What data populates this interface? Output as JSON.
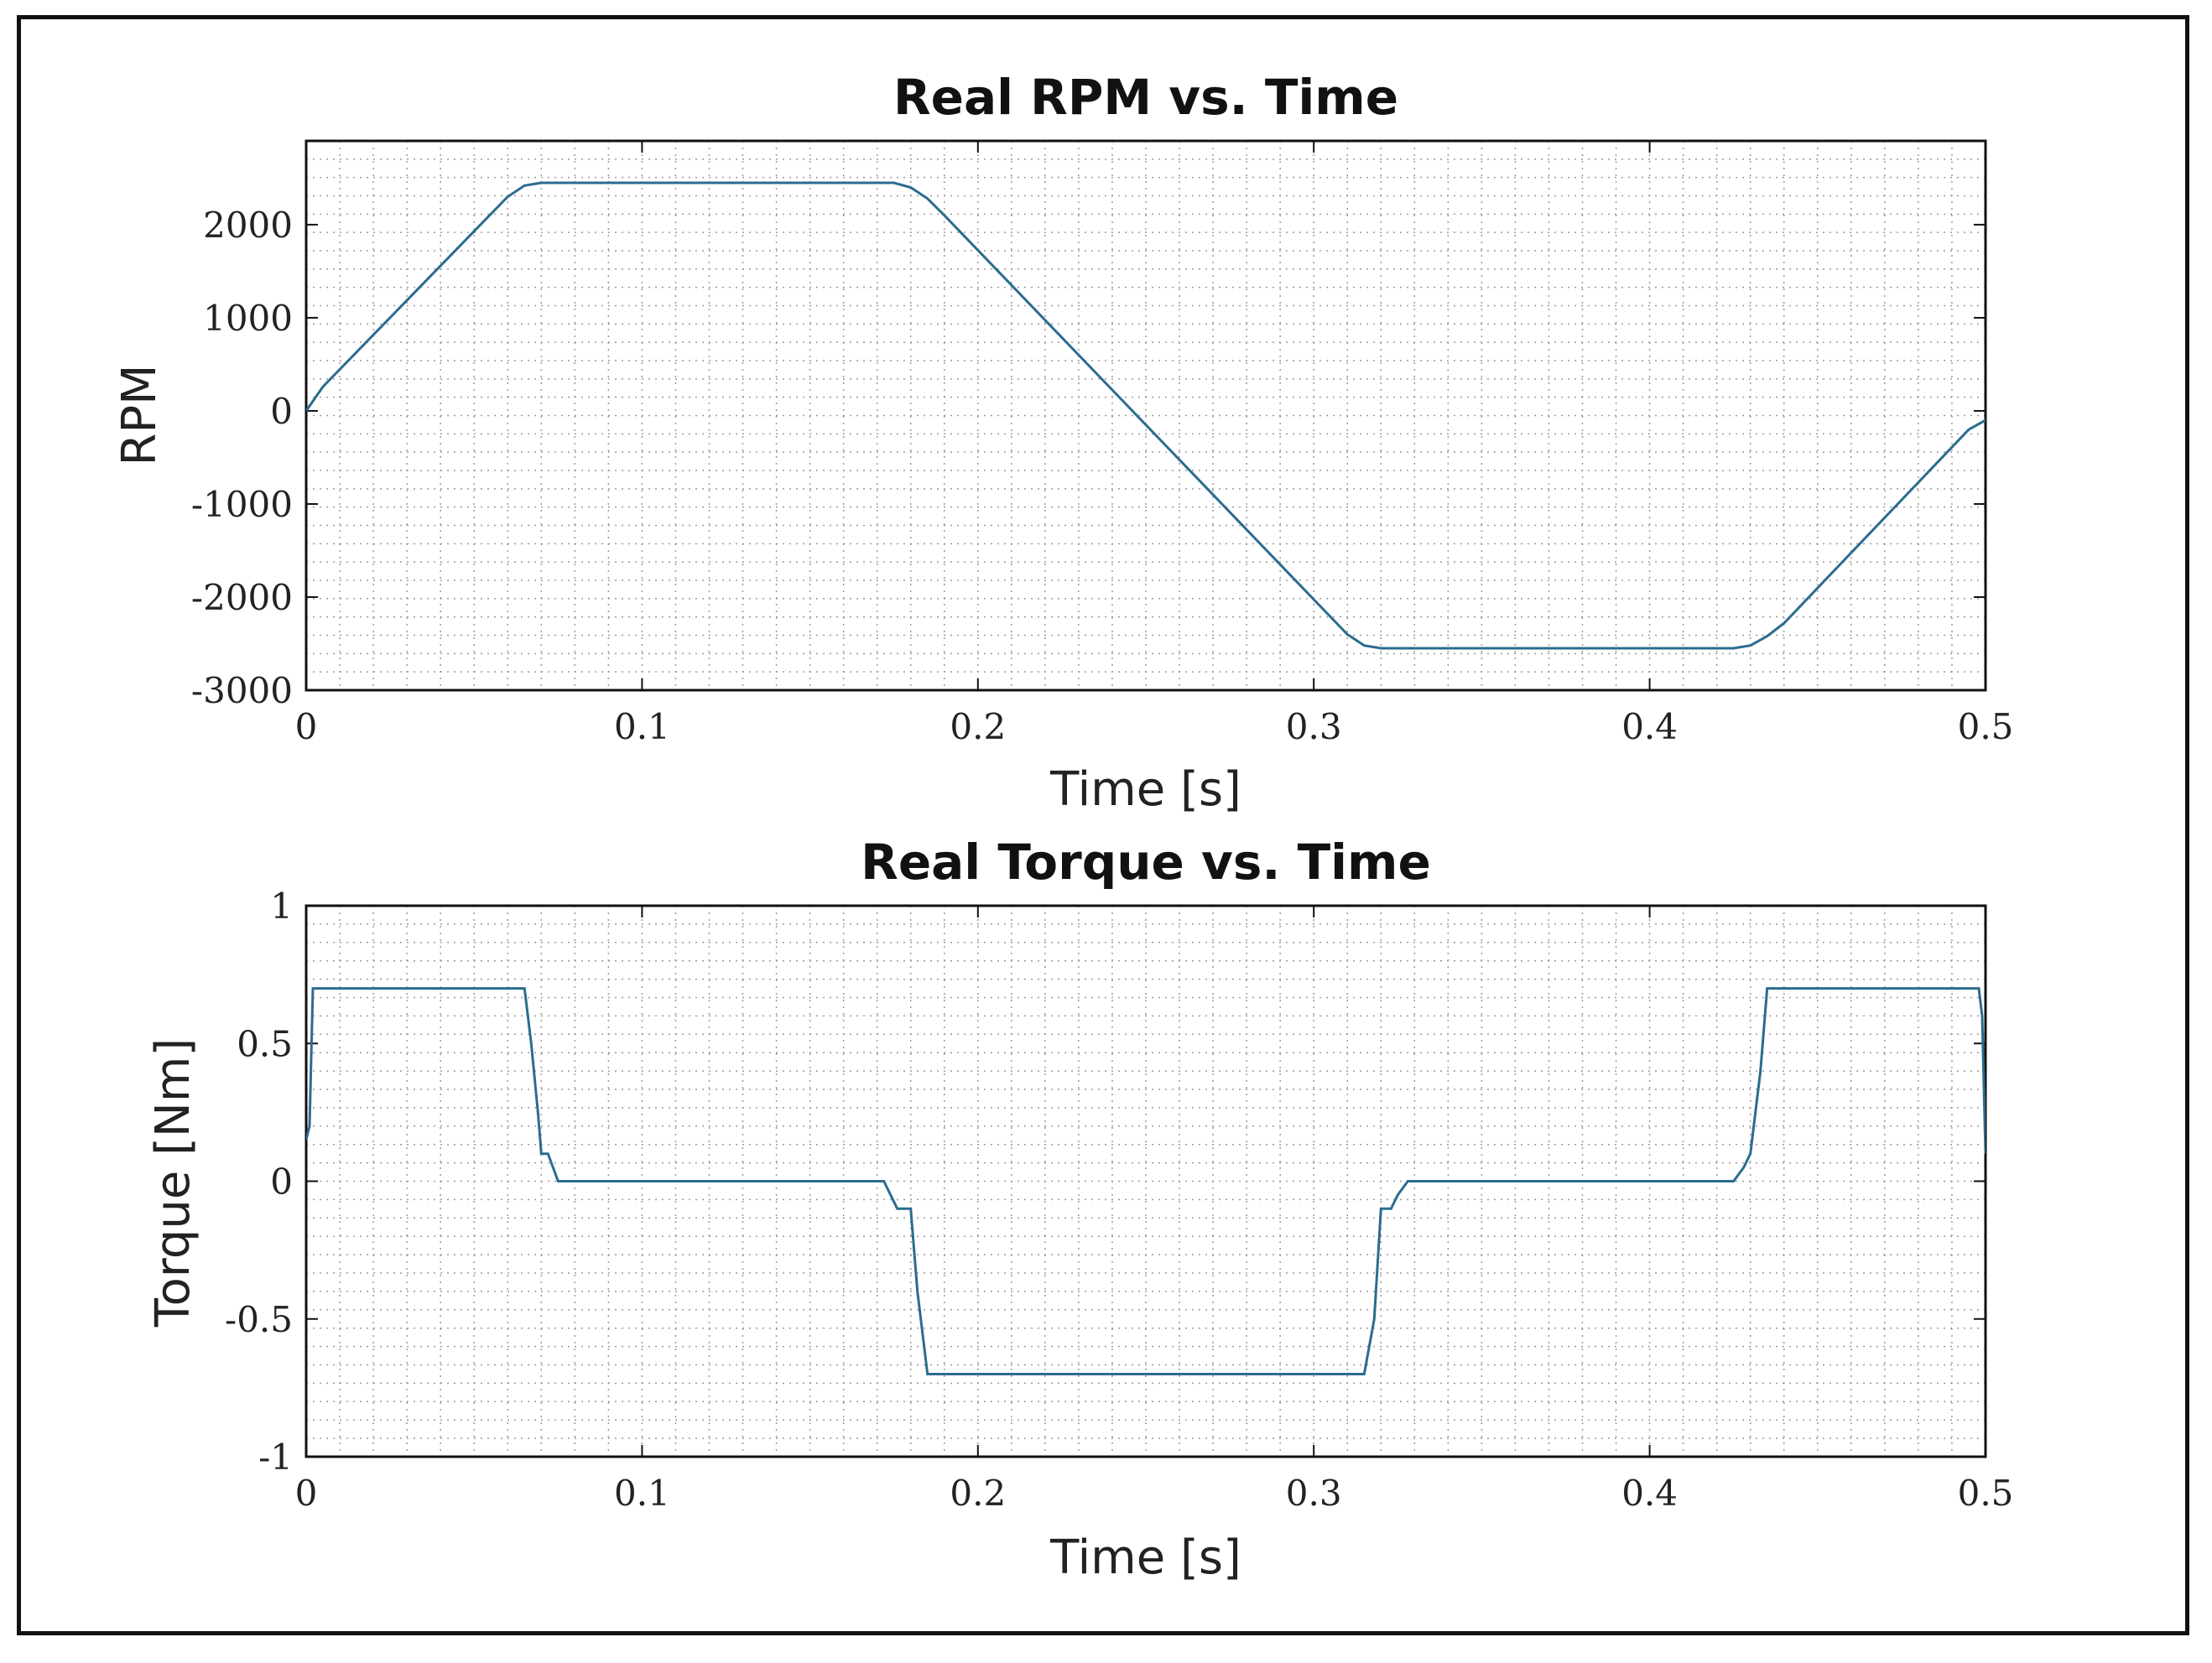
{
  "chart_data": [
    {
      "type": "line",
      "title": "Real RPM vs. Time",
      "xlabel": "Time [s]",
      "ylabel": "RPM",
      "xlim": [
        0,
        0.5
      ],
      "ylim": [
        -3000,
        2900
      ],
      "xticks": [
        0,
        0.1,
        0.2,
        0.3,
        0.4,
        0.5
      ],
      "xtick_labels": [
        "0",
        "0.1",
        "0.2",
        "0.3",
        "0.4",
        "0.5"
      ],
      "yticks": [
        2000,
        1000,
        0,
        -1000,
        -2000,
        -3000
      ],
      "ytick_labels": [
        "2000",
        "1000",
        "0",
        "-1000",
        "-2000",
        "-3000"
      ],
      "grid": "dotted minor grid",
      "series": [
        {
          "color": "#2b6c8f",
          "x": [
            0,
            0.005,
            0.06,
            0.065,
            0.07,
            0.175,
            0.18,
            0.185,
            0.19,
            0.31,
            0.315,
            0.32,
            0.425,
            0.43,
            0.435,
            0.44,
            0.495,
            0.5
          ],
          "y": [
            0,
            260,
            2300,
            2420,
            2450,
            2450,
            2400,
            2280,
            2100,
            -2400,
            -2520,
            -2550,
            -2550,
            -2520,
            -2420,
            -2280,
            -200,
            -100
          ]
        }
      ]
    },
    {
      "type": "line",
      "title": "Real Torque vs. Time",
      "xlabel": "Time [s]",
      "ylabel": "Torque [Nm]",
      "xlim": [
        0,
        0.5
      ],
      "ylim": [
        -1,
        1
      ],
      "xticks": [
        0,
        0.1,
        0.2,
        0.3,
        0.4,
        0.5
      ],
      "xtick_labels": [
        "0",
        "0.1",
        "0.2",
        "0.3",
        "0.4",
        "0.5"
      ],
      "yticks": [
        1,
        0.5,
        0,
        -0.5,
        -1
      ],
      "ytick_labels": [
        "1",
        "0.5",
        "0",
        "-0.5",
        "-1"
      ],
      "grid": "dotted minor grid",
      "series": [
        {
          "color": "#2b6c8f",
          "x": [
            0,
            0.001,
            0.002,
            0.065,
            0.067,
            0.069,
            0.07,
            0.072,
            0.075,
            0.172,
            0.174,
            0.176,
            0.18,
            0.182,
            0.185,
            0.315,
            0.318,
            0.32,
            0.323,
            0.325,
            0.328,
            0.425,
            0.428,
            0.43,
            0.433,
            0.435,
            0.498,
            0.499,
            0.5
          ],
          "y": [
            0.15,
            0.2,
            0.7,
            0.7,
            0.5,
            0.25,
            0.1,
            0.1,
            0,
            0,
            -0.05,
            -0.1,
            -0.1,
            -0.4,
            -0.7,
            -0.7,
            -0.5,
            -0.1,
            -0.1,
            -0.05,
            0,
            0,
            0.05,
            0.1,
            0.4,
            0.7,
            0.7,
            0.6,
            0.1
          ]
        }
      ]
    }
  ]
}
